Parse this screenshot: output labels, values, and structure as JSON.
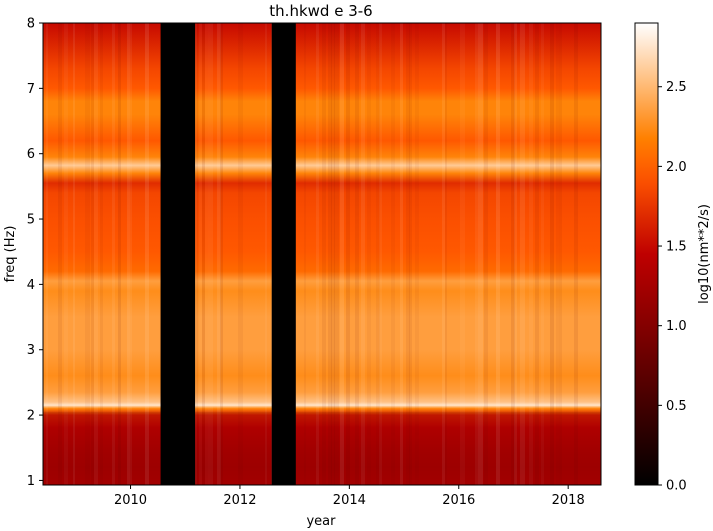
{
  "chart_data": {
    "type": "heatmap",
    "title": "th.hkwd e 3-6",
    "xlabel": "year",
    "ylabel": "freq (Hz)",
    "xlim": [
      2008.4,
      2018.6
    ],
    "ylim": [
      0.93,
      8.0
    ],
    "x_ticks": [
      2010,
      2012,
      2014,
      2016,
      2018
    ],
    "x_tick_labels": [
      "2010",
      "2012",
      "2014",
      "2016",
      "2018"
    ],
    "y_ticks": [
      1,
      2,
      3,
      4,
      5,
      6,
      7,
      8
    ],
    "y_tick_labels": [
      "1",
      "2",
      "3",
      "4",
      "5",
      "6",
      "7",
      "8"
    ],
    "colorbar": {
      "label": "log10(nm**2/s)",
      "colormap": "gist_heat",
      "vmin": 0.0,
      "vmax": 2.9,
      "ticks": [
        0.0,
        0.5,
        1.0,
        1.5,
        2.0,
        2.5
      ],
      "tick_labels": [
        "0.0",
        "0.5",
        "1.0",
        "1.5",
        "2.0",
        "2.5"
      ]
    },
    "data_gaps": [
      {
        "start": 2010.55,
        "end": 2011.18
      },
      {
        "start": 2012.58,
        "end": 2013.02
      }
    ],
    "frequency_profile": {
      "freq": [
        0.93,
        1.2,
        1.5,
        1.8,
        2.0,
        2.1,
        2.15,
        2.2,
        2.35,
        2.6,
        3.0,
        3.5,
        3.9,
        4.05,
        4.2,
        4.5,
        5.0,
        5.4,
        5.55,
        5.7,
        5.82,
        5.95,
        6.2,
        6.6,
        6.8,
        7.0,
        7.3,
        7.6,
        8.0
      ],
      "level": [
        1.35,
        1.3,
        1.35,
        1.45,
        1.6,
        2.2,
        2.75,
        2.55,
        2.35,
        2.25,
        2.35,
        2.35,
        2.25,
        2.35,
        2.05,
        1.95,
        1.9,
        1.85,
        1.7,
        2.2,
        2.6,
        2.2,
        1.95,
        2.2,
        2.2,
        1.95,
        1.85,
        1.7,
        1.5
      ]
    },
    "features": [
      {
        "freq": 2.15,
        "description": "bright band"
      },
      {
        "freq": 5.82,
        "description": "bright band"
      },
      {
        "freq": 6.65,
        "description": "moderate band"
      }
    ]
  }
}
